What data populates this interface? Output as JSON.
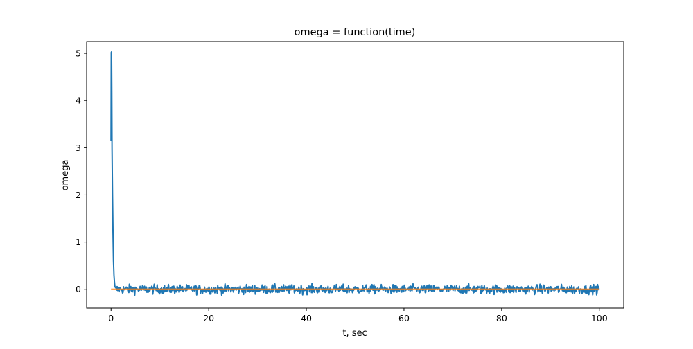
{
  "chart_data": {
    "type": "line",
    "title": "omega = function(time)",
    "xlabel": "t, sec",
    "ylabel": "omega",
    "xlim": [
      -5,
      105
    ],
    "ylim": [
      -0.4,
      5.25
    ],
    "xticks": [
      0,
      20,
      40,
      60,
      80,
      100
    ],
    "yticks": [
      0,
      1,
      2,
      3,
      4,
      5
    ],
    "grid": false,
    "legend": "none",
    "series": [
      {
        "color": "#1f77b4",
        "x_start": 0,
        "x_end": 100,
        "initial_points": [
          {
            "x": 0.0,
            "y": 3.15
          },
          {
            "x": 0.05,
            "y": 5.02
          },
          {
            "x": 0.1,
            "y": 5.03
          },
          {
            "x": 0.15,
            "y": 4.2
          },
          {
            "x": 0.2,
            "y": 3.0
          },
          {
            "x": 0.3,
            "y": 2.0
          },
          {
            "x": 0.4,
            "y": 1.2
          },
          {
            "x": 0.5,
            "y": 0.6
          },
          {
            "x": 0.6,
            "y": 0.3
          },
          {
            "x": 0.7,
            "y": 0.15
          },
          {
            "x": 0.8,
            "y": 0.05
          }
        ],
        "noise_level": 0.0,
        "noise_amplitude": 0.09
      },
      {
        "color": "#ff7f0e",
        "x": [
          0,
          100
        ],
        "y": [
          0,
          0
        ]
      }
    ]
  }
}
